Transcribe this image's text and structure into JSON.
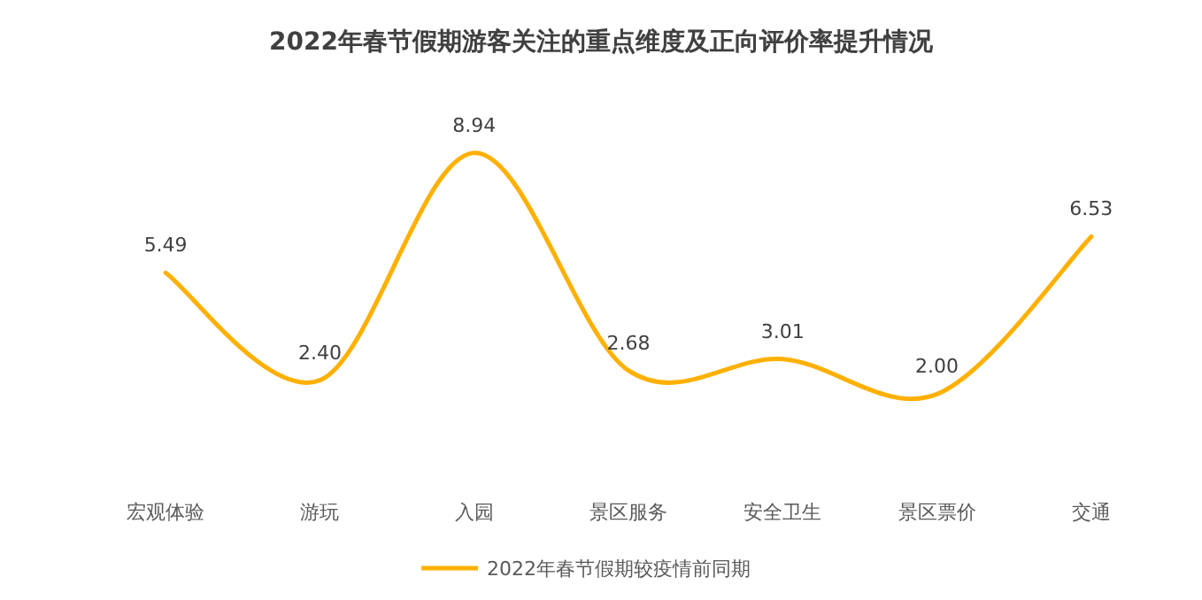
{
  "chart_data": {
    "type": "line",
    "title": "2022年春节假期游客关注的重点维度及正向评价率提升情况",
    "categories": [
      "宏观体验",
      "游玩",
      "入园",
      "景区服务",
      "安全卫生",
      "景区票价",
      "交通"
    ],
    "series": [
      {
        "name": "2022年春节假期较疫情前同期",
        "color": "#ffb000",
        "values": [
          5.49,
          2.4,
          8.94,
          2.68,
          3.01,
          2.0,
          6.53
        ],
        "value_labels": [
          "5.49",
          "2.40",
          "8.94",
          "2.68",
          "3.01",
          "2.00",
          "6.53"
        ]
      }
    ],
    "legend": "bottom",
    "grid": false,
    "marker": "none",
    "line_style": "solid"
  }
}
